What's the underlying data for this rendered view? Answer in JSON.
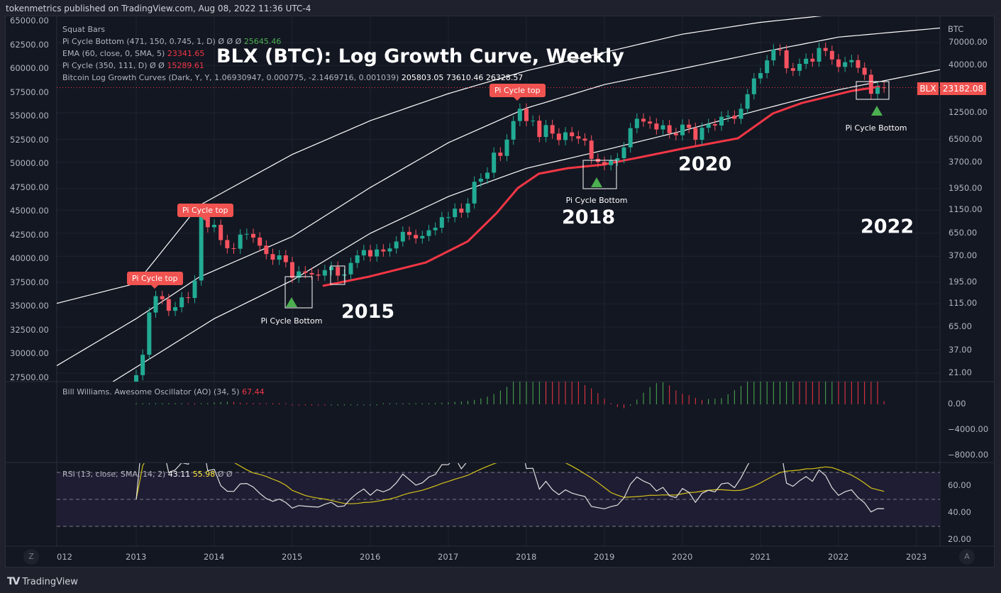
{
  "header": "tokenmetrics published on TradingView.com, Aug 08, 2022 11:36 UTC-4",
  "title": "BLX (BTC): Log Growth Curve, Weekly",
  "legend": {
    "squat": "Squat Bars",
    "pcb_label": "Pi Cycle Bottom (471, 150, 0.745, 1, D)  Ø  Ø  Ø",
    "pcb_value": "25645.46",
    "ema_label": "EMA (60, close, 0, SMA, 5)",
    "ema_value": "23341.65",
    "pc_label": "Pi Cycle (350, 111, D)  Ø  Ø",
    "pc_value": "15289.61",
    "blg_label": "Bitcoin Log Growth Curves (Dark, Y, Y, 1.06930947, 0.000775, -2.1469716, 0.001039)",
    "blg_values": "205803.05  73610.46  26328.57",
    "ao_label": "Bill Williams. Awesome Oscillator (AO) (34, 5)",
    "ao_value": "67.44",
    "rsi_label": "RSI (13, close, SMA, 14, 2)",
    "rsi_value": "43.11",
    "rsi_sma": "55.98",
    "rsi_tail": "Ø  Ø"
  },
  "left_axis": [
    "65000.00",
    "62500.00",
    "60000.00",
    "57500.00",
    "55000.00",
    "52500.00",
    "50000.00",
    "47500.00",
    "45000.00",
    "42500.00",
    "40000.00",
    "37500.00",
    "35000.00",
    "32500.00",
    "30000.00",
    "27500.00"
  ],
  "right_axis": {
    "unit": "BTC",
    "labels": [
      "70000.00",
      "40000.00",
      "12500.00",
      "6500.00",
      "3700.00",
      "1950.00",
      "1150.00",
      "650.00",
      "370.00",
      "195.00",
      "115.00",
      "65.00",
      "37.00",
      "21.00"
    ]
  },
  "price_tag": {
    "symbol": "BLX",
    "value": "23182.08"
  },
  "ao_axis": [
    "0.00",
    "−4000.00",
    "−8000.00"
  ],
  "rsi_axis": [
    "60.00",
    "40.00",
    "20.00"
  ],
  "time_axis": [
    "012",
    "2013",
    "2014",
    "2015",
    "2016",
    "2017",
    "2018",
    "2019",
    "2020",
    "2021",
    "2022",
    "2023"
  ],
  "annotations": {
    "pi_top": [
      "Pi Cycle top",
      "Pi Cycle top",
      "Pi Cycle top"
    ],
    "pi_bottom": [
      "Pi Cycle Bottom",
      "Pi Cycle Bottom",
      "Pi Cycle Bottom"
    ],
    "years": [
      "2015",
      "2018",
      "2020",
      "2022"
    ]
  },
  "buttons": {
    "zoom": "Z",
    "auto": "A"
  },
  "footer": "TradingView",
  "colors": {
    "up": "#22ab94",
    "down": "#f7525f",
    "ema": "#f23645",
    "rsi": "#e0e0e0",
    "rsi_sma": "#d4c21a",
    "curve": "#ffffff"
  },
  "chart_data": {
    "type": "candlestick",
    "scale": "log",
    "start": "2013-01",
    "closes": [
      20,
      33,
      93,
      139,
      129,
      97,
      106,
      135,
      133,
      204,
      1130,
      754,
      800,
      550,
      450,
      445,
      630,
      640,
      585,
      480,
      390,
      340,
      378,
      320,
      218,
      255,
      245,
      236,
      230,
      263,
      285,
      230,
      237,
      314,
      378,
      430,
      368,
      437,
      416,
      448,
      531,
      673,
      624,
      573,
      608,
      700,
      745,
      964,
      965,
      1190,
      1080,
      1350,
      2300,
      2480,
      2875,
      4700,
      4340,
      6470,
      10200,
      13800,
      10200,
      10300,
      6900,
      9240,
      7500,
      6400,
      7730,
      7030,
      6630,
      6320,
      4040,
      3740,
      3460,
      3850,
      4100,
      5350,
      8570,
      10800,
      10080,
      9600,
      8300,
      9200,
      7570,
      7200,
      9350,
      8600,
      6440,
      8650,
      9450,
      9140,
      11350,
      11650,
      10780,
      13800,
      19700,
      29000,
      33100,
      45200,
      58900,
      57800,
      37300,
      35000,
      41500,
      47100,
      43800,
      61300,
      57000,
      46300,
      38500,
      43200,
      45500,
      37700,
      31800,
      19900,
      23300,
      23182
    ],
    "growth_curves": [
      [
        [
          2011.9,
          112
        ],
        [
          2013,
          190
        ],
        [
          2013.8,
          1276
        ],
        [
          2015,
          4500
        ],
        [
          2016,
          10300
        ],
        [
          2017,
          20000
        ],
        [
          2018,
          35000
        ],
        [
          2019,
          55000
        ],
        [
          2020,
          86000
        ],
        [
          2021,
          115000
        ],
        [
          2021.8,
          135000
        ]
      ],
      [
        [
          2011.9,
          23
        ],
        [
          2013,
          80
        ],
        [
          2013.8,
          220
        ],
        [
          2015,
          600
        ],
        [
          2016,
          2000
        ],
        [
          2017,
          6000
        ],
        [
          2018,
          14000
        ],
        [
          2019,
          25000
        ],
        [
          2020,
          37000
        ],
        [
          2021,
          55000
        ],
        [
          2022,
          80000
        ],
        [
          2023.3,
          100000
        ]
      ],
      [
        [
          2012.7,
          17
        ],
        [
          2014,
          80
        ],
        [
          2015,
          205
        ],
        [
          2016,
          650
        ],
        [
          2017,
          1600
        ],
        [
          2018,
          3200
        ],
        [
          2019,
          5000
        ],
        [
          2020,
          8000
        ],
        [
          2021,
          13500
        ],
        [
          2022,
          22000
        ],
        [
          2023.3,
          36000
        ]
      ]
    ],
    "ema": [
      [
        2015.39,
        179
      ],
      [
        2015.98,
        224
      ],
      [
        2016.71,
        317
      ],
      [
        2017.25,
        534
      ],
      [
        2017.62,
        1070
      ],
      [
        2017.89,
        1970
      ],
      [
        2018.16,
        2800
      ],
      [
        2018.53,
        3210
      ],
      [
        2018.98,
        3500
      ],
      [
        2019.44,
        4170
      ],
      [
        2019.98,
        5140
      ],
      [
        2020.71,
        6680
      ],
      [
        2021.16,
        12300
      ],
      [
        2021.53,
        15900
      ],
      [
        2022.16,
        21300
      ],
      [
        2022.53,
        23800
      ]
    ],
    "pi_cycle_tops": [
      "2013-04",
      "2013-11",
      "2017-12"
    ],
    "pi_cycle_bottoms": [
      "2015-01",
      "2018-12",
      "2022-06"
    ]
  }
}
